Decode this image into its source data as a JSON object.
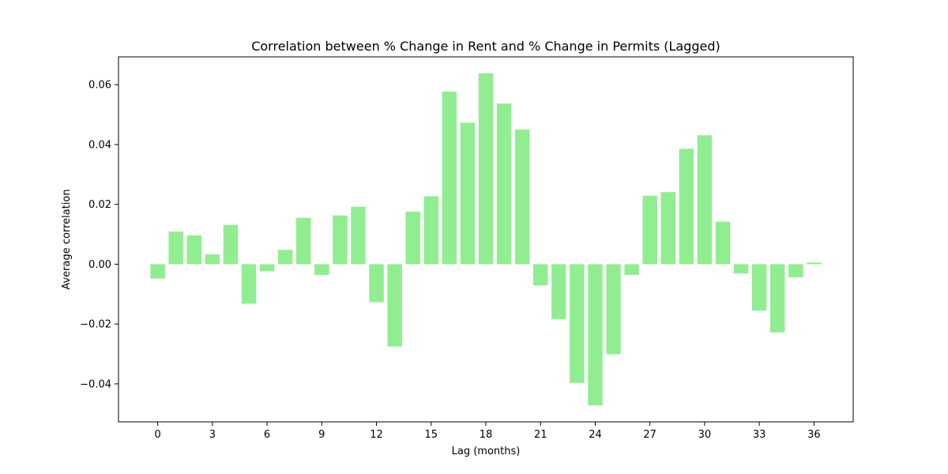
{
  "chart_data": {
    "type": "bar",
    "title": "Correlation between % Change in Rent and % Change in Permits (Lagged)",
    "xlabel": "Lag (months)",
    "ylabel": "Average correlation",
    "categories": [
      0,
      1,
      2,
      3,
      4,
      5,
      6,
      7,
      8,
      9,
      10,
      11,
      12,
      13,
      14,
      15,
      16,
      17,
      18,
      19,
      20,
      21,
      22,
      23,
      24,
      25,
      26,
      27,
      28,
      29,
      30,
      31,
      32,
      33,
      34,
      35,
      36
    ],
    "values": [
      -0.0048,
      0.0109,
      0.0096,
      0.0033,
      0.0131,
      -0.0132,
      -0.0024,
      0.0048,
      0.0155,
      -0.0036,
      0.0163,
      0.0192,
      -0.0127,
      -0.0275,
      0.0176,
      0.0227,
      0.0577,
      0.0473,
      0.0638,
      0.0537,
      0.045,
      -0.0071,
      -0.0184,
      -0.0397,
      -0.0472,
      -0.0301,
      -0.0036,
      0.0229,
      0.0241,
      0.0386,
      0.0431,
      0.0142,
      -0.0031,
      -0.0155,
      -0.0228,
      -0.0044,
      0.0006
    ],
    "xticks": [
      0,
      3,
      6,
      9,
      12,
      15,
      18,
      21,
      24,
      27,
      30,
      33,
      36
    ],
    "yticks": [
      -0.04,
      -0.02,
      0.0,
      0.02,
      0.04,
      0.06
    ],
    "ytick_labels": [
      "−0.04",
      "−0.02",
      "0.00",
      "0.02",
      "0.04",
      "0.06"
    ],
    "xlim": [
      -2.15,
      38.15
    ],
    "ylim": [
      -0.0527,
      0.0693
    ],
    "bar_color": "#90ee90",
    "grid": false,
    "legend": false
  }
}
